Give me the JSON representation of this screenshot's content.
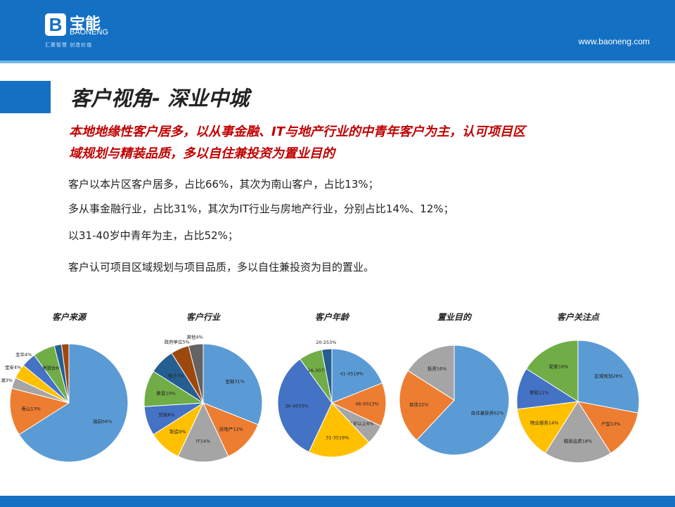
{
  "header": {
    "logo_mark": "B",
    "logo_cn": "宝能",
    "logo_en": "BAONENG",
    "slogan": "汇聚智慧  创造价值",
    "url": "www.baoneng.com"
  },
  "title": "客户视角- 深业中城",
  "subtitle": [
    "本地地缘性客户居多，以从事金融、IT与地产行业的中青年客户为主，认可项目区",
    "域规划与精装品质，多以自住兼投资为置业目的"
  ],
  "points": [
    "客户以本片区客户居多，占比66%，其次为南山客户，占比13%；",
    "多从事金融行业，占比31%，其次为IT行业与房地产行业，分别占比14%、12%；",
    "以31-40岁中青年为主，占比52%；",
    "客户认可项目区域规划与项目品质，多以自住兼投资为目的置业。"
  ],
  "colors": {
    "brand": "#1470c3",
    "subtitle": "#c00000"
  },
  "chart_data": [
    {
      "type": "pie",
      "title": "客户来源",
      "labels": [
        "福田66%",
        "南山13%",
        "湖3%",
        "宝安4%",
        "龙华4%",
        "港澳台6%",
        "",
        ""
      ],
      "values": [
        66,
        13,
        3,
        4,
        4,
        6,
        2,
        2
      ],
      "colors": [
        "#5b9bd5",
        "#ed7d31",
        "#a5a5a5",
        "#ffc000",
        "#4472c4",
        "#70ad47",
        "#255e91",
        "#9e480e"
      ]
    },
    {
      "type": "pie",
      "title": "客户行业",
      "labels": [
        "金融31%",
        "房地产12%",
        "IT14%",
        "制造9%",
        "贸易8%",
        "教育10%",
        "电子7%",
        "政府单位5%",
        "其他4%"
      ],
      "values": [
        31,
        12,
        14,
        9,
        8,
        10,
        7,
        5,
        4
      ],
      "colors": [
        "#5b9bd5",
        "#ed7d31",
        "#a5a5a5",
        "#ffc000",
        "#4472c4",
        "#70ad47",
        "#255e91",
        "#9e480e",
        "#636363"
      ]
    },
    {
      "type": "pie",
      "title": "客户年龄",
      "labels": [
        "41-4519%",
        "46-5013%",
        "51岁以上6%",
        "31-3519%",
        "36-4033%",
        "26-307%",
        "20-253%"
      ],
      "values": [
        19,
        13,
        6,
        19,
        33,
        7,
        3
      ],
      "colors": [
        "#5b9bd5",
        "#ed7d31",
        "#a5a5a5",
        "#ffc000",
        "#4472c4",
        "#70ad47",
        "#255e91"
      ]
    },
    {
      "type": "pie",
      "title": "置业目的",
      "labels": [
        "自住兼投资62%",
        "自住22%",
        "投资16%"
      ],
      "values": [
        62,
        22,
        16
      ],
      "colors": [
        "#5b9bd5",
        "#ed7d31",
        "#a5a5a5"
      ]
    },
    {
      "type": "pie",
      "title": "客户关注点",
      "labels": [
        "区域规划28%",
        "户型13%",
        "精装品质18%",
        "物业服务14%",
        "景观11%",
        "配套16%"
      ],
      "values": [
        28,
        13,
        18,
        14,
        11,
        16
      ],
      "colors": [
        "#5b9bd5",
        "#ed7d31",
        "#a5a5a5",
        "#ffc000",
        "#4472c4",
        "#70ad47"
      ]
    }
  ]
}
